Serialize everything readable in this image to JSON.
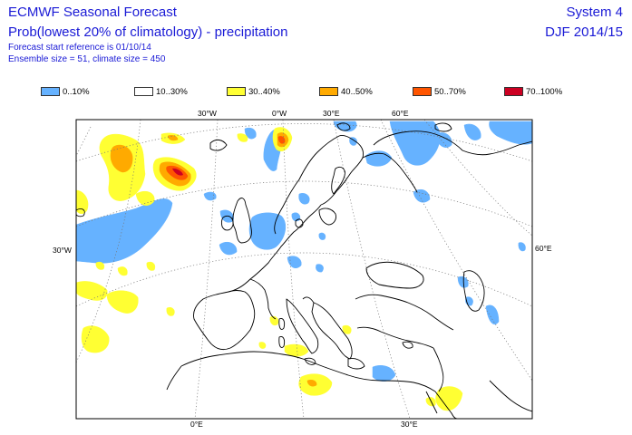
{
  "header": {
    "title": "ECMWF Seasonal Forecast",
    "subtitle": "Prob(lowest 20% of climatology) - precipitation",
    "forecast_start": "Forecast start reference is 01/10/14",
    "ensemble": "Ensemble size = 51, climate size = 450",
    "system": "System 4",
    "season": "DJF 2014/15"
  },
  "legend": [
    {
      "label": "0..10%",
      "color": "#66b2ff"
    },
    {
      "label": "10..30%",
      "color": "#ffffff"
    },
    {
      "label": "30..40%",
      "color": "#ffff33"
    },
    {
      "label": "40..50%",
      "color": "#ffaa00"
    },
    {
      "label": "50..70%",
      "color": "#ff5500"
    },
    {
      "label": "70..100%",
      "color": "#cc0022"
    }
  ],
  "graticule_labels": {
    "top_30w": "30°W",
    "top_0w": "0°W",
    "top_30e": "30°E",
    "top_60e": "60°E",
    "left_30w": "30°W",
    "right_60e": "60°E",
    "bottom_0e": "0°E",
    "bottom_30e": "30°E"
  }
}
